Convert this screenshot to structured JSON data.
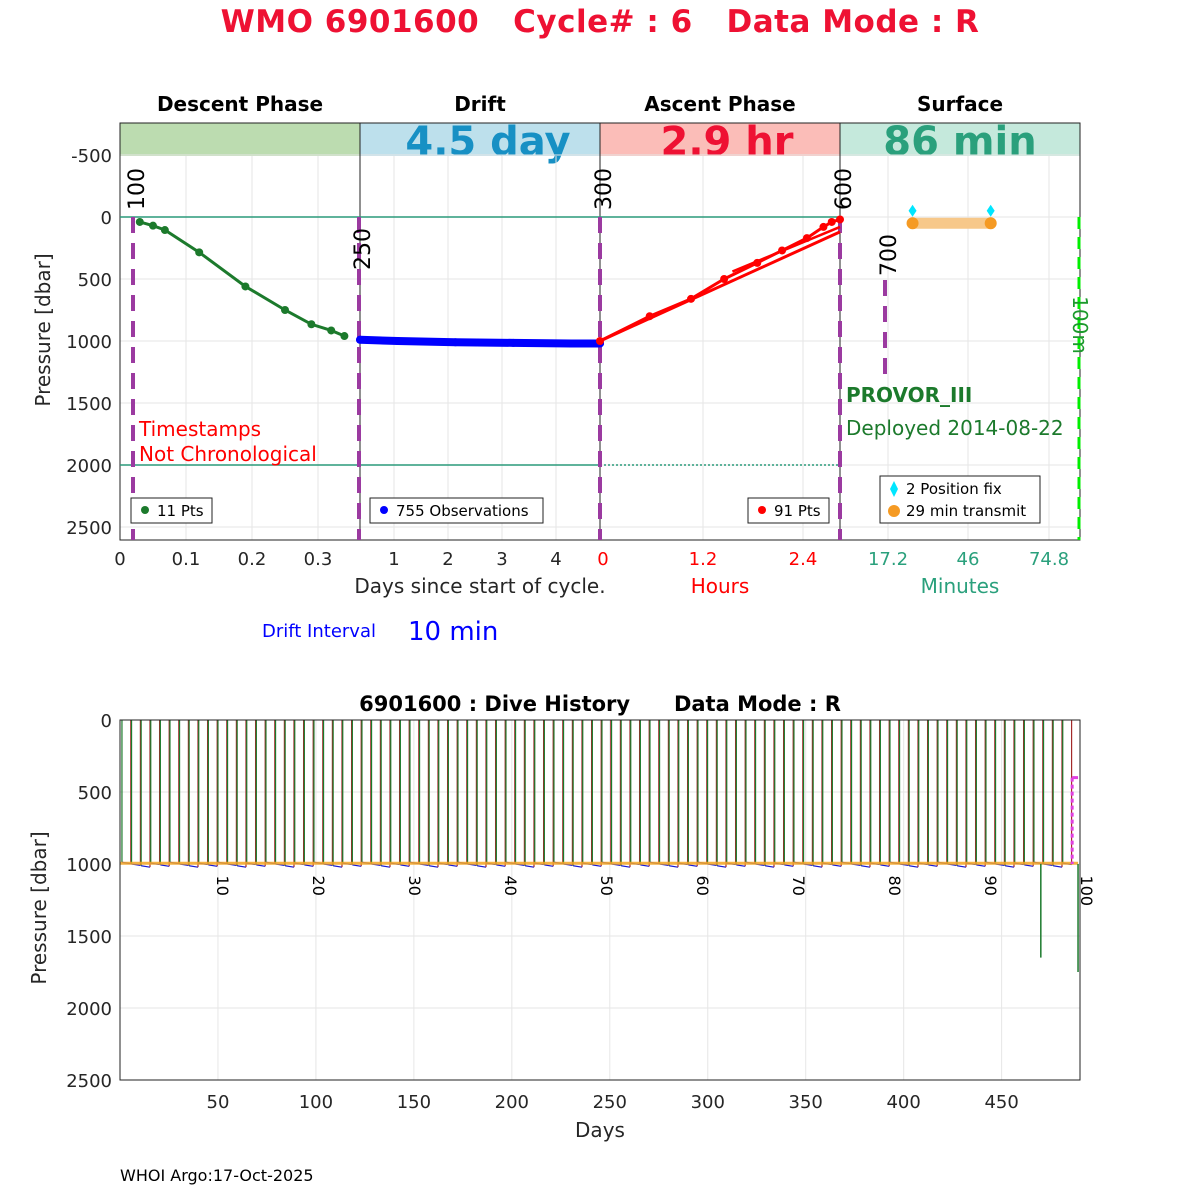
{
  "title": "WMO 6901600   Cycle# : 6   Data Mode : R",
  "footer": "WHOI Argo:17-Oct-2025",
  "colors": {
    "descent": "#1c7a2c",
    "drift": "#0000ff",
    "ascent": "#ff0000",
    "surface_teal": "#2aa07c",
    "purple": "#9b3aa0",
    "orange": "#f59a23",
    "cyan": "#00e6ff",
    "drift_blue": "#0b8bc0",
    "ascent_red": "#ee1133"
  },
  "top_chart": {
    "ylabel": "Pressure [dbar]",
    "yticks": [
      "-500",
      "0",
      "500",
      "1000",
      "1500",
      "2000",
      "2500"
    ],
    "panels": [
      {
        "title": "Descent Phase",
        "duration": "",
        "band_color": "#bcdcb0",
        "duration_color": "#000000"
      },
      {
        "title": "Drift",
        "duration": "4.5 day",
        "band_color": "#bde0ec",
        "duration_color": "#1790c4"
      },
      {
        "title": "Ascent Phase",
        "duration": "2.9 hr",
        "band_color": "#fbbdb8",
        "duration_color": "#ee1133"
      },
      {
        "title": "Surface",
        "duration": "86 min",
        "band_color": "#c5e9dc",
        "duration_color": "#2aa07c"
      }
    ],
    "descent": {
      "xticks": [
        "0",
        "0.1",
        "0.2",
        "0.3"
      ],
      "legend": "11 Pts",
      "note_line1": "Timestamps",
      "note_line2": "Not Chronological",
      "vline_label": "100",
      "points": [
        [
          0.03,
          40
        ],
        [
          0.05,
          70
        ],
        [
          0.068,
          105
        ],
        [
          0.12,
          285
        ],
        [
          0.19,
          560
        ],
        [
          0.25,
          750
        ],
        [
          0.29,
          865
        ],
        [
          0.32,
          915
        ],
        [
          0.34,
          960
        ]
      ]
    },
    "drift": {
      "xticks": [
        "1",
        "2",
        "3",
        "4"
      ],
      "legend": "755 Observations",
      "vline_label": "250",
      "xlabel": "Days since start of cycle.",
      "interval_label": "Drift Interval",
      "interval_value": "10 min"
    },
    "ascent": {
      "xticks": [
        "0",
        "1.2",
        "2.4"
      ],
      "legend": "91 Pts",
      "vline_label": "300",
      "xlabel": "Hours",
      "points": [
        [
          0.0,
          1000
        ],
        [
          0.6,
          800
        ],
        [
          1.1,
          660
        ],
        [
          1.5,
          500
        ],
        [
          1.9,
          370
        ],
        [
          2.2,
          270
        ],
        [
          2.5,
          170
        ],
        [
          2.7,
          80
        ],
        [
          2.8,
          40
        ],
        [
          2.9,
          20
        ]
      ]
    },
    "surface": {
      "xticks": [
        "17.2",
        "46",
        "74.8"
      ],
      "xlabel": "Minutes",
      "vline_label_1": "600",
      "vline_label_2": "700",
      "vline_label_3": "100m",
      "platform": "PROVOR_III",
      "deployed": "Deployed 2014-08-22",
      "legend_fix": "2 Position fix",
      "legend_transmit": "29 min transmit",
      "fix_times": [
        26,
        54
      ],
      "transmit_range": [
        26,
        54
      ]
    }
  },
  "chart_data": [
    {
      "type": "line",
      "title": "WMO 6901600   Cycle# : 6   Data Mode : R",
      "ylabel": "Pressure [dbar]",
      "ylim": [
        -700,
        2600
      ],
      "series": [
        {
          "name": "11 Pts",
          "x_unit": "Days since start of cycle.",
          "x": [
            0.03,
            0.05,
            0.068,
            0.12,
            0.19,
            0.25,
            0.29,
            0.32,
            0.34
          ],
          "y": [
            40,
            70,
            105,
            285,
            560,
            750,
            865,
            915,
            960
          ]
        },
        {
          "name": "755 Observations",
          "x_unit": "Days since start of cycle.",
          "x": [
            0.35,
            1,
            2,
            3,
            4,
            4.5
          ],
          "y": [
            990,
            1000,
            1010,
            1015,
            1020,
            1020
          ]
        },
        {
          "name": "91 Pts",
          "x_unit": "Hours",
          "x": [
            0.0,
            0.6,
            1.1,
            1.5,
            1.9,
            2.2,
            2.5,
            2.7,
            2.8,
            2.9
          ],
          "y": [
            1000,
            800,
            660,
            500,
            370,
            270,
            170,
            80,
            40,
            20
          ]
        }
      ]
    },
    {
      "type": "line",
      "title": "6901600 : Dive History      Data Mode : R",
      "xlabel": "Days",
      "ylabel": "Pressure [dbar]",
      "xlim": [
        0,
        490
      ],
      "ylim": [
        0,
        2500
      ],
      "xticks": [
        "50",
        "100",
        "150",
        "200",
        "250",
        "300",
        "350",
        "400",
        "450"
      ],
      "yticks": [
        "0",
        "500",
        "1000",
        "1500",
        "2000",
        "2500"
      ],
      "cycle_labels": [
        "10",
        "20",
        "30",
        "40",
        "50",
        "60",
        "70",
        "80",
        "90",
        "100"
      ],
      "cycle_length_days": 4.9,
      "cycles": 99,
      "park_pressure": 1000,
      "late_deeper_profiles": [
        [
          470,
          1650
        ],
        [
          489,
          1750
        ]
      ],
      "last_profile_surface_pressure": 400
    }
  ]
}
